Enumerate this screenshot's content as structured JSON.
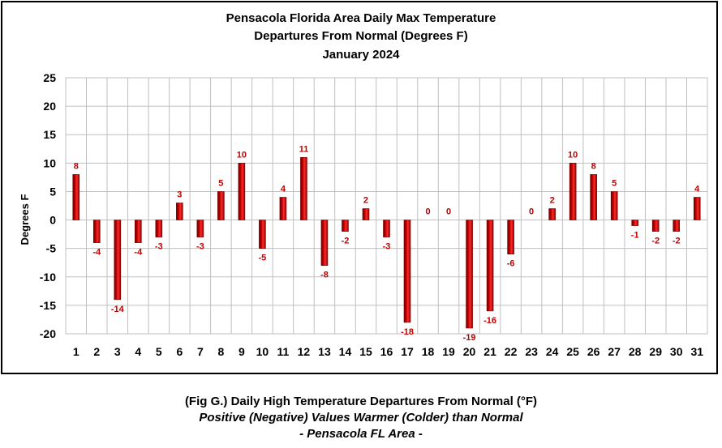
{
  "chart_data": {
    "type": "bar",
    "title": [
      "Pensacola Florida Area Daily Max Temperature",
      "Departures From Normal (Degrees F)",
      "January 2024"
    ],
    "ylabel": "Degrees F",
    "xlabel": "",
    "ylim": [
      -20,
      25
    ],
    "yticks": [
      25,
      20,
      15,
      10,
      5,
      0,
      -5,
      -10,
      -15,
      -20
    ],
    "grid": true,
    "categories": [
      "1",
      "2",
      "3",
      "4",
      "5",
      "6",
      "7",
      "8",
      "9",
      "10",
      "11",
      "12",
      "13",
      "14",
      "15",
      "16",
      "17",
      "18",
      "19",
      "20",
      "21",
      "22",
      "23",
      "24",
      "25",
      "26",
      "27",
      "28",
      "29",
      "30",
      "31"
    ],
    "values": [
      8,
      -4,
      -14,
      -4,
      -3,
      3,
      -3,
      5,
      10,
      -5,
      4,
      11,
      -8,
      -2,
      2,
      -3,
      -18,
      0,
      0,
      -19,
      -16,
      -6,
      0,
      2,
      10,
      8,
      5,
      -1,
      -2,
      -2,
      4
    ],
    "bar_color": "#c00000",
    "label_color": "#c00000"
  },
  "caption": {
    "line1": "(Fig G.) Daily High Temperature Departures From Normal (°F)",
    "line2": "Positive (Negative) Values Warmer (Colder) than Normal",
    "line3": "- Pensacola FL Area -"
  }
}
